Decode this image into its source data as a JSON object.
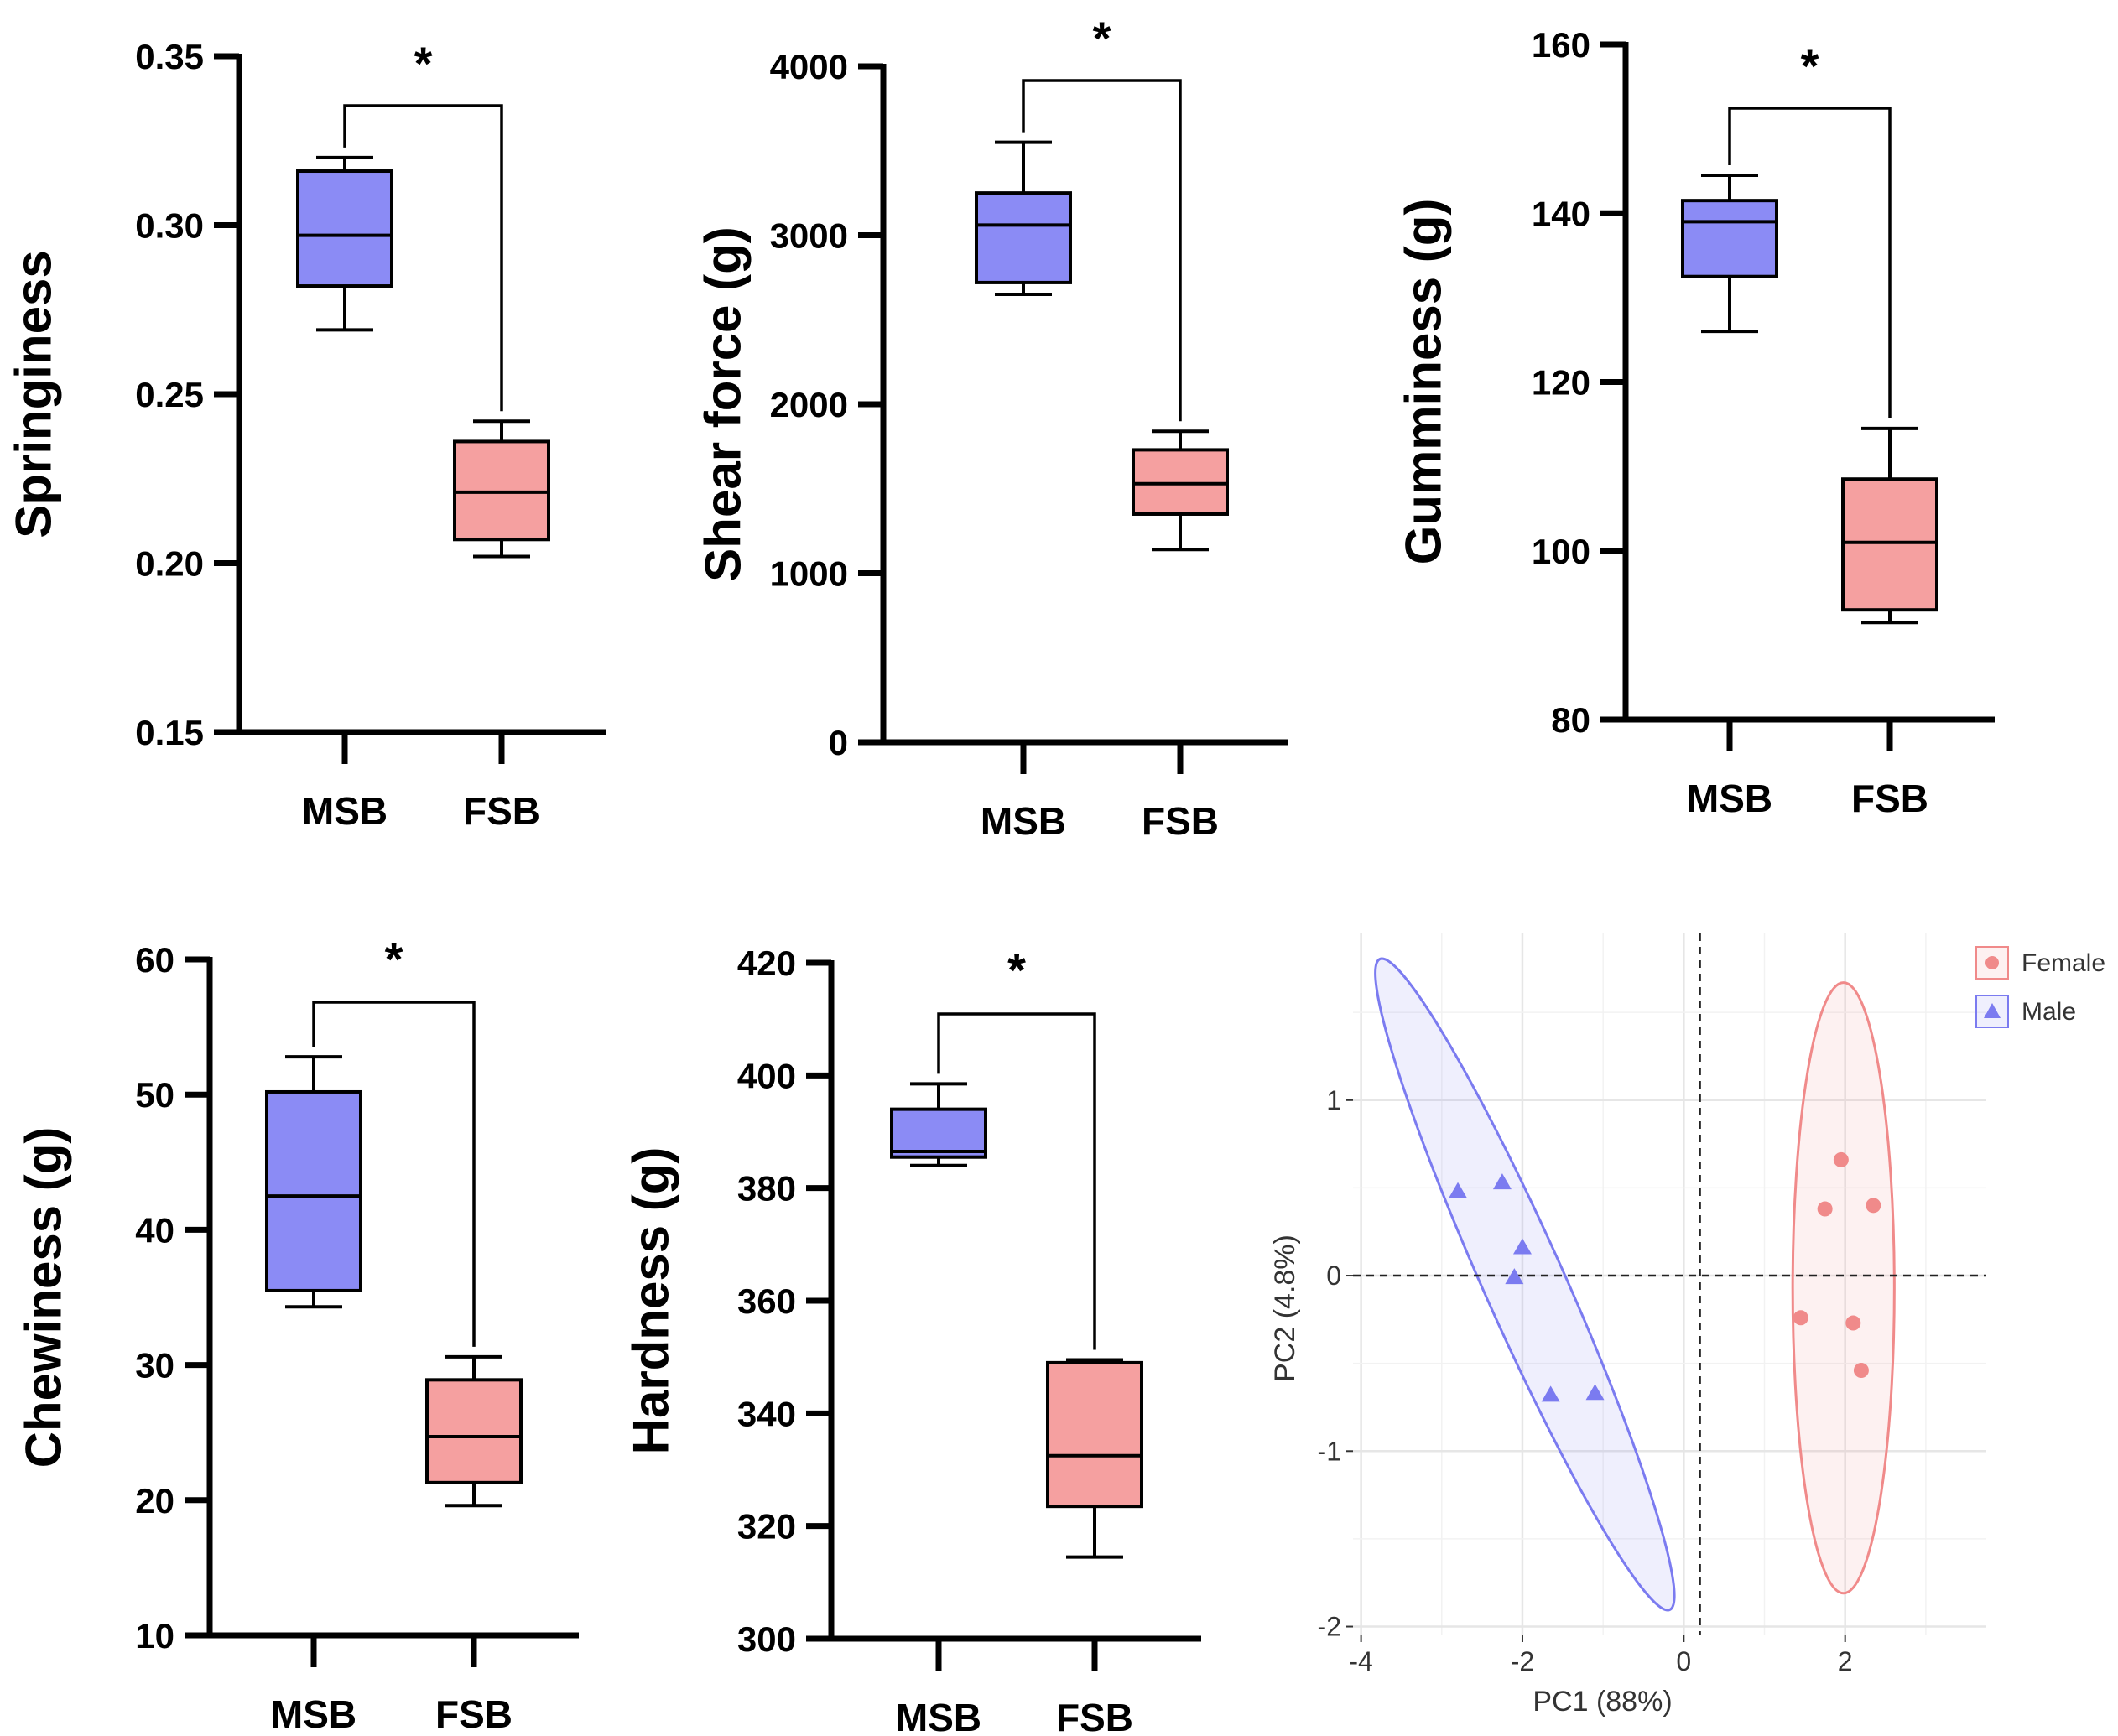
{
  "chart_data": [
    {
      "type": "box",
      "ylabel": "Springiness",
      "ylim": [
        0.15,
        0.35
      ],
      "yticks": [
        "0.15",
        "0.20",
        "0.25",
        "0.30",
        "0.35"
      ],
      "categories": [
        "MSB",
        "FSB"
      ],
      "boxes": [
        {
          "group": "MSB",
          "min": 0.269,
          "q1": 0.282,
          "median": 0.297,
          "q3": 0.316,
          "max": 0.32
        },
        {
          "group": "FSB",
          "min": 0.202,
          "q1": 0.207,
          "median": 0.221,
          "q3": 0.236,
          "max": 0.242
        }
      ],
      "significance": "*"
    },
    {
      "type": "box",
      "ylabel": "Shear force (g)",
      "ylim": [
        0,
        4000
      ],
      "yticks": [
        "0",
        "1000",
        "2000",
        "3000",
        "4000"
      ],
      "categories": [
        "MSB",
        "FSB"
      ],
      "boxes": [
        {
          "group": "MSB",
          "min": 2650,
          "q1": 2720,
          "median": 3060,
          "q3": 3250,
          "max": 3550
        },
        {
          "group": "FSB",
          "min": 1140,
          "q1": 1350,
          "median": 1530,
          "q3": 1730,
          "max": 1840
        }
      ],
      "significance": "*"
    },
    {
      "type": "box",
      "ylabel": "Gumminess (g)",
      "ylim": [
        80,
        160
      ],
      "yticks": [
        "80",
        "100",
        "120",
        "140",
        "160"
      ],
      "categories": [
        "MSB",
        "FSB"
      ],
      "boxes": [
        {
          "group": "MSB",
          "min": 126.0,
          "q1": 132.5,
          "median": 139.0,
          "q3": 141.5,
          "max": 144.5
        },
        {
          "group": "FSB",
          "min": 91.5,
          "q1": 93.0,
          "median": 101.0,
          "q3": 108.5,
          "max": 114.5
        }
      ],
      "significance": "*"
    },
    {
      "type": "box",
      "ylabel": "Chewiness (g)",
      "ylim": [
        10,
        60
      ],
      "yticks": [
        "10",
        "20",
        "30",
        "40",
        "50",
        "60"
      ],
      "categories": [
        "MSB",
        "FSB"
      ],
      "boxes": [
        {
          "group": "MSB",
          "min": 34.3,
          "q1": 35.5,
          "median": 42.5,
          "q3": 50.2,
          "max": 52.8
        },
        {
          "group": "FSB",
          "min": 19.6,
          "q1": 21.3,
          "median": 24.7,
          "q3": 28.9,
          "max": 30.6
        }
      ],
      "significance": "*"
    },
    {
      "type": "box",
      "ylabel": "Hardness (g)",
      "ylim": [
        300,
        420
      ],
      "yticks": [
        "300",
        "320",
        "340",
        "360",
        "380",
        "400",
        "420"
      ],
      "categories": [
        "MSB",
        "FSB"
      ],
      "boxes": [
        {
          "group": "MSB",
          "min": 384.0,
          "q1": 385.5,
          "median": 386.5,
          "q3": 394.0,
          "max": 398.5
        },
        {
          "group": "FSB",
          "min": 314.5,
          "q1": 323.5,
          "median": 332.5,
          "q3": 349.0,
          "max": 349.5
        }
      ],
      "significance": "*"
    },
    {
      "type": "scatter",
      "xlabel": "PC1 (88%)",
      "ylabel": "PC2 (4.8%)",
      "xlim": [
        -4.1,
        3.75
      ],
      "ylim": [
        -2.05,
        1.95
      ],
      "xticks": [
        "-4",
        "-2",
        "0",
        "2"
      ],
      "yticks": [
        "-2",
        "-1",
        "0",
        "1"
      ],
      "legend": [
        "Female",
        "Male"
      ],
      "series": [
        {
          "name": "Female",
          "color": "#F08A8A",
          "marker": "circle",
          "points": [
            [
              1.95,
              0.66
            ],
            [
              1.75,
              0.38
            ],
            [
              2.35,
              0.4
            ],
            [
              1.45,
              -0.24
            ],
            [
              2.1,
              -0.27
            ],
            [
              2.2,
              -0.54
            ]
          ],
          "ellipse": {
            "center": [
              1.98,
              -0.07
            ],
            "semi_axes": [
              0.63,
              1.74
            ],
            "rotation_deg": 0
          }
        },
        {
          "name": "Male",
          "color": "#7B7BF0",
          "marker": "triangle",
          "points": [
            [
              -2.8,
              0.48
            ],
            [
              -2.25,
              0.53
            ],
            [
              -2.0,
              0.16
            ],
            [
              -2.1,
              -0.01
            ],
            [
              -1.65,
              -0.68
            ],
            [
              -1.1,
              -0.67
            ]
          ],
          "ellipse": {
            "center": [
              -1.97,
              -0.05
            ],
            "semi_axes": [
              0.5,
              2.03
            ],
            "rotation_deg": -24
          }
        }
      ]
    }
  ]
}
